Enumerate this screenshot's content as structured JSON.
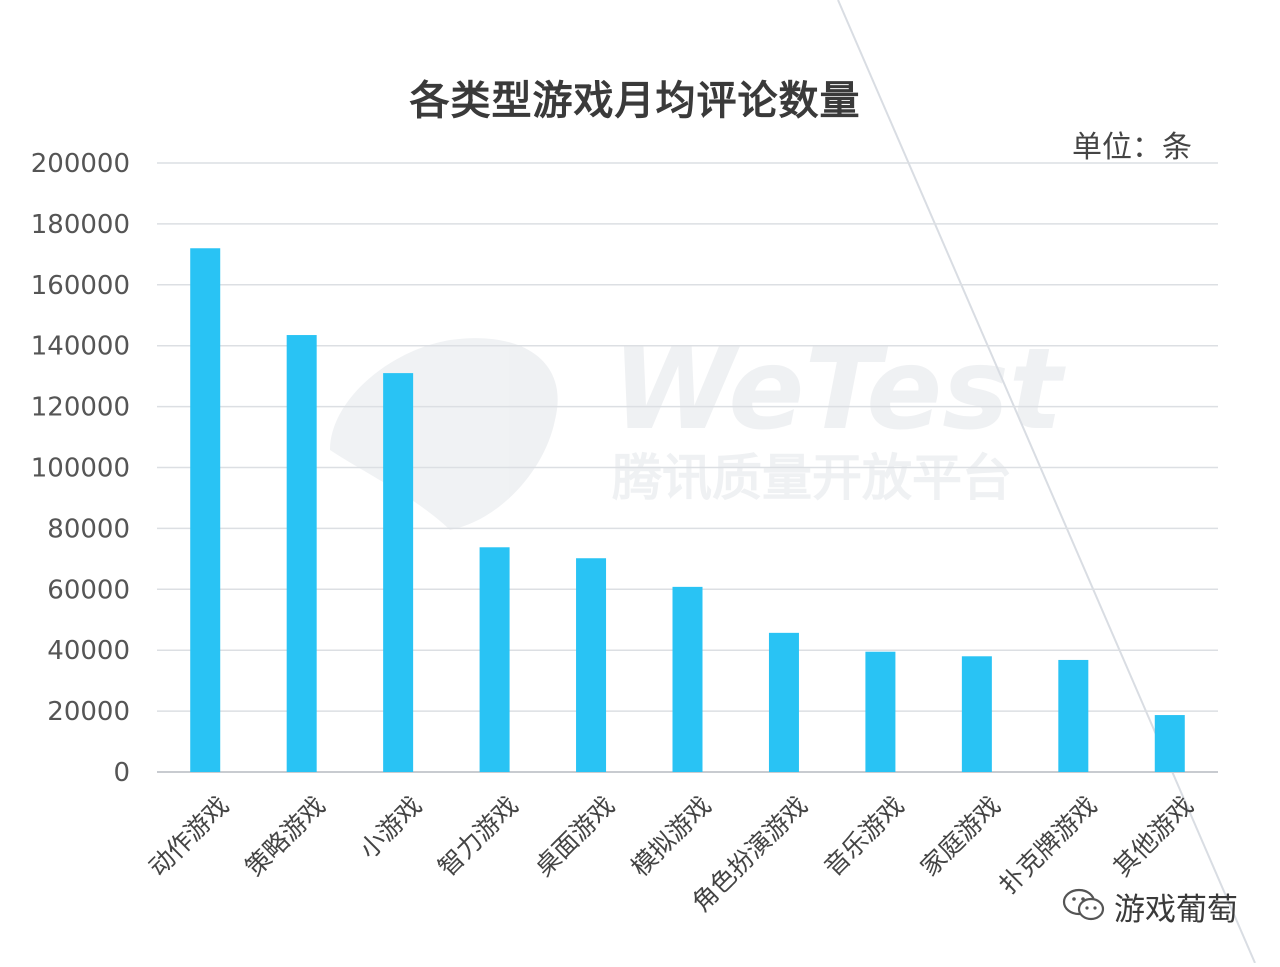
{
  "chart_data": {
    "type": "bar",
    "title": "各类型游戏月均评论数量",
    "unit_label": "单位：条",
    "categories": [
      "动作游戏",
      "策略游戏",
      "小游戏",
      "智力游戏",
      "桌面游戏",
      "模拟游戏",
      "角色扮演游戏",
      "音乐游戏",
      "家庭游戏",
      "扑克牌游戏",
      "其他游戏"
    ],
    "values": [
      172000,
      143500,
      131000,
      73800,
      70200,
      60800,
      45700,
      39500,
      38000,
      36800,
      18700
    ],
    "ylim": [
      0,
      200000
    ],
    "yticks": [
      0,
      20000,
      40000,
      60000,
      80000,
      100000,
      120000,
      140000,
      160000,
      180000,
      200000
    ],
    "grid": true,
    "bar_color": "#29c3f4"
  },
  "watermark": {
    "brand": "WeTest",
    "subtitle": "腾讯质量开放平台"
  },
  "attribution": {
    "icon": "wechat-icon",
    "text": "游戏葡萄"
  }
}
